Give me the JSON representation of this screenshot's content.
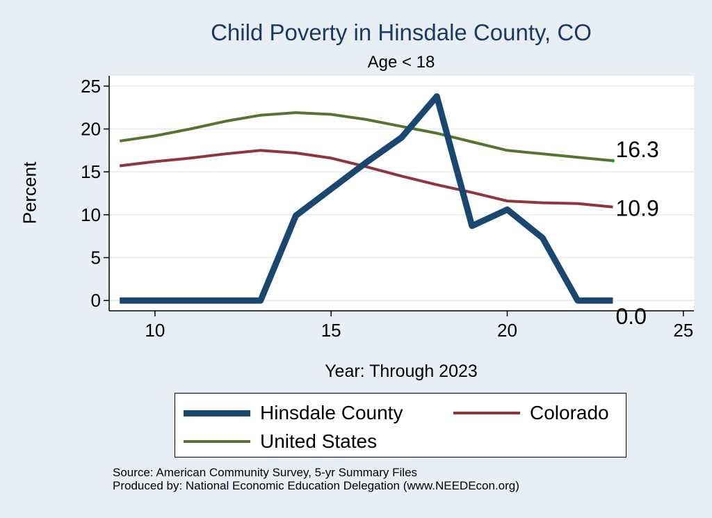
{
  "chart_data": {
    "type": "line",
    "title": "Child Poverty in Hinsdale County, CO",
    "subtitle": "Age < 18",
    "xlabel": "Year: Through 2023",
    "ylabel": "Percent",
    "xlim": [
      8.7,
      25.3
    ],
    "ylim": [
      -1.2,
      26.2
    ],
    "xticks": [
      10,
      15,
      20,
      25
    ],
    "yticks": [
      0,
      5,
      10,
      15,
      20,
      25
    ],
    "grid": true,
    "legend_position": "bottom",
    "series": [
      {
        "name": "Hinsdale County",
        "color": "#1a476f",
        "x": [
          9,
          10,
          11,
          12,
          13,
          14,
          15,
          16,
          17,
          18,
          19,
          20,
          21,
          22,
          23
        ],
        "y": [
          0,
          0,
          0,
          0,
          0,
          9.9,
          13.0,
          16.1,
          19.0,
          23.8,
          8.7,
          10.6,
          7.3,
          0,
          0
        ],
        "end_label": "0.0"
      },
      {
        "name": "Colorado",
        "color": "#90353b",
        "x": [
          9,
          10,
          11,
          12,
          13,
          14,
          15,
          16,
          17,
          18,
          19,
          20,
          21,
          22,
          23
        ],
        "y": [
          15.7,
          16.2,
          16.6,
          17.1,
          17.5,
          17.2,
          16.6,
          15.6,
          14.5,
          13.5,
          12.6,
          11.6,
          11.4,
          11.3,
          10.9
        ],
        "end_label": "10.9"
      },
      {
        "name": "United States",
        "color": "#55752f",
        "x": [
          9,
          10,
          11,
          12,
          13,
          14,
          15,
          16,
          17,
          18,
          19,
          20,
          21,
          22,
          23
        ],
        "y": [
          18.6,
          19.2,
          20.0,
          20.9,
          21.6,
          21.9,
          21.7,
          21.1,
          20.3,
          19.5,
          18.5,
          17.5,
          17.1,
          16.7,
          16.3
        ],
        "end_label": "16.3"
      }
    ]
  },
  "source_lines": [
    "Source: American Community Survey, 5-yr Summary Files",
    "Produced by: National Economic Education Delegation (www.NEEDEcon.org)"
  ]
}
